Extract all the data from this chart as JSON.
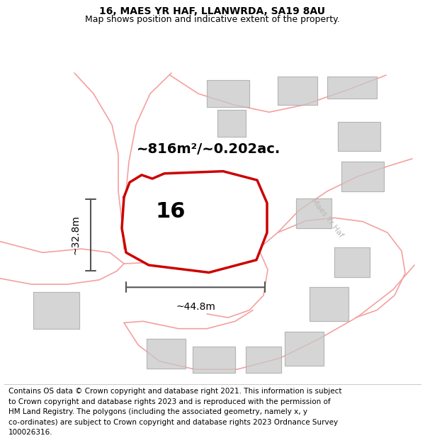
{
  "title": "16, MAES YR HAF, LLANWRDA, SA19 8AU",
  "subtitle": "Map shows position and indicative extent of the property.",
  "footer_lines": [
    "Contains OS data © Crown copyright and database right 2021. This information is subject",
    "to Crown copyright and database rights 2023 and is reproduced with the permission of",
    "HM Land Registry. The polygons (including the associated geometry, namely x, y",
    "co-ordinates) are subject to Crown copyright and database rights 2023 Ordnance Survey",
    "100026316."
  ],
  "area_label": "~816m²/~0.202ac.",
  "number_label": "16",
  "dim_h_label": "~32.8m",
  "dim_w_label": "~44.8m",
  "road_label": "Maes Yr Haf",
  "map_bg": "#f5f5f5",
  "highlight_color": "#cc0000",
  "pink_color": "#f5a0a0",
  "gray_color": "#c8c8c8",
  "dim_line_color": "#555555",
  "title_fontsize": 10,
  "subtitle_fontsize": 9,
  "footer_fontsize": 7.5,
  "area_fontsize": 14,
  "number_fontsize": 22,
  "dim_fontsize": 10,
  "road_fontsize": 8
}
